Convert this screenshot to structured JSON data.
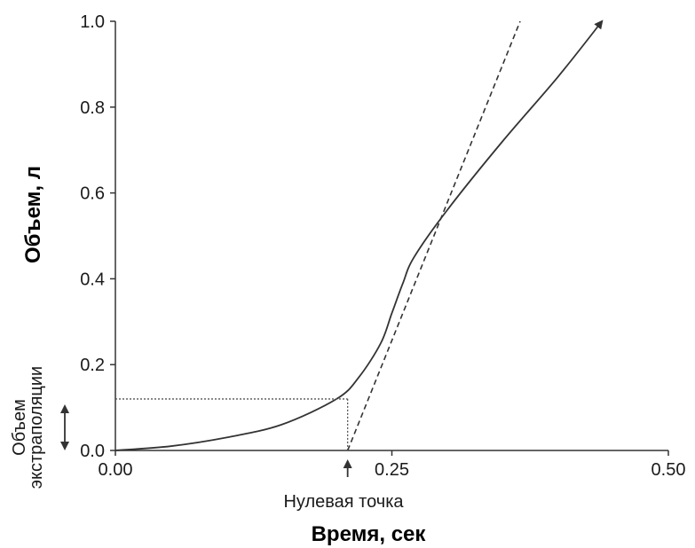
{
  "chart_data": {
    "type": "line",
    "xlabel": "Время, сек",
    "ylabel": "Объем, л",
    "xlim": [
      0,
      0.5
    ],
    "ylim": [
      0,
      1.0
    ],
    "x_ticks": [
      "0.00",
      "0.25",
      "0.50"
    ],
    "y_ticks": [
      "0.0",
      "0.2",
      "0.4",
      "0.6",
      "0.8",
      "1.0"
    ],
    "grid": false,
    "series": [
      {
        "style": "solid",
        "x": [
          0.0,
          0.05,
          0.1,
          0.15,
          0.2,
          0.22,
          0.24,
          0.25,
          0.26,
          0.27,
          0.3,
          0.35,
          0.4,
          0.44
        ],
        "y": [
          0.0,
          0.01,
          0.03,
          0.06,
          0.12,
          0.17,
          0.25,
          0.32,
          0.39,
          0.45,
          0.56,
          0.72,
          0.87,
          1.0
        ]
      },
      {
        "style": "dashed",
        "x": [
          0.21,
          0.366
        ],
        "y": [
          0.0,
          1.0
        ]
      }
    ],
    "annotations": {
      "zero_point_label": "Нулевая точка",
      "zero_point_x": 0.21,
      "extrapolation_label_line1": "Объем",
      "extrapolation_label_line2": "экстраполяции",
      "extrapolation_volume": 0.12
    }
  }
}
